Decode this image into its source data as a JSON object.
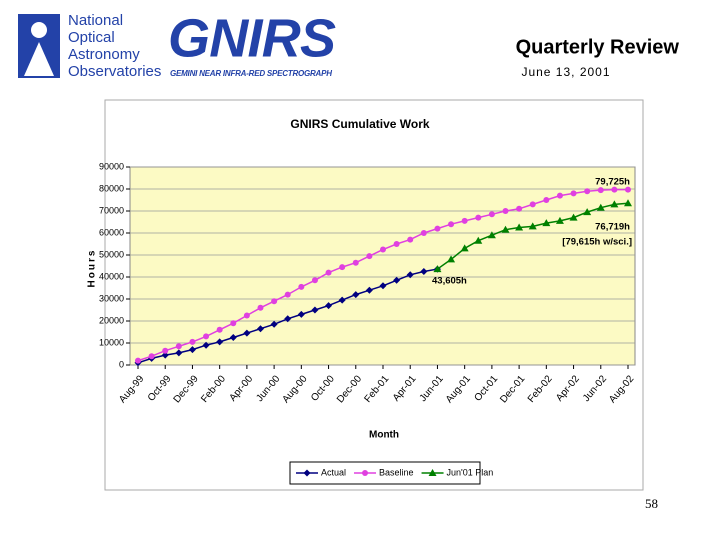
{
  "header": {
    "org_lines": [
      "National",
      "Optical",
      "Astronomy",
      "Observatories"
    ],
    "logo": "GNIRS",
    "logo_subtitle": "GEMINI NEAR INFRA-RED SPECTROGRAPH",
    "title": "Quarterly Review",
    "date": "June 13, 2001"
  },
  "page_number": "58",
  "chart_data": {
    "type": "line",
    "title": "GNIRS Cumulative Work",
    "x_label": "Month",
    "y_label": "Hours",
    "categories": [
      "Aug-99",
      null,
      "Oct-99",
      null,
      "Dec-99",
      null,
      "Feb-00",
      null,
      "Apr-00",
      null,
      "Jun-00",
      null,
      "Aug-00",
      null,
      "Oct-00",
      null,
      "Dec-00",
      null,
      "Feb-01",
      null,
      "Apr-01",
      null,
      "Jun-01",
      null,
      "Aug-01",
      null,
      "Oct-01",
      null,
      "Dec-01",
      null,
      "Feb-02",
      null,
      "Apr-02",
      null,
      "Jun-02",
      null,
      "Aug-02"
    ],
    "ylim": [
      0,
      90000
    ],
    "yticks": [
      0,
      10000,
      20000,
      30000,
      40000,
      50000,
      60000,
      70000,
      80000,
      90000
    ],
    "grid": true,
    "background": "#fcfac4",
    "legend": "bottom",
    "series": [
      {
        "name": "Actual",
        "color": "#000080",
        "marker": "diamond",
        "values": [
          1000,
          3000,
          4500,
          5500,
          7000,
          9000,
          10500,
          12500,
          14500,
          16500,
          18500,
          21000,
          23000,
          25000,
          27000,
          29500,
          32000,
          34000,
          36000,
          38500,
          41000,
          42500,
          43605,
          null,
          null,
          null,
          null,
          null,
          null,
          null,
          null,
          null,
          null,
          null,
          null,
          null,
          null
        ]
      },
      {
        "name": "Baseline",
        "color": "#e040e0",
        "marker": "circle",
        "values": [
          2000,
          4000,
          6500,
          8500,
          10500,
          13000,
          16000,
          19000,
          22500,
          26000,
          29000,
          32000,
          35500,
          38500,
          42000,
          44500,
          46500,
          49500,
          52500,
          55000,
          57000,
          60000,
          62000,
          64000,
          65500,
          67000,
          68500,
          70000,
          71000,
          73000,
          75000,
          77000,
          78000,
          79000,
          79500,
          79700,
          79725
        ]
      },
      {
        "name": "Jun'01 Plan",
        "color": "#008000",
        "marker": "triangle",
        "values": [
          null,
          null,
          null,
          null,
          null,
          null,
          null,
          null,
          null,
          null,
          null,
          null,
          null,
          null,
          null,
          null,
          null,
          null,
          null,
          null,
          null,
          null,
          43605,
          48000,
          53000,
          56500,
          59000,
          61500,
          62500,
          63000,
          64500,
          65500,
          67000,
          69500,
          71500,
          73000,
          73500
        ]
      }
    ],
    "annotations": [
      "79,725h",
      "76,719h",
      "[79,615h w/sci.]",
      "43,605h"
    ]
  }
}
